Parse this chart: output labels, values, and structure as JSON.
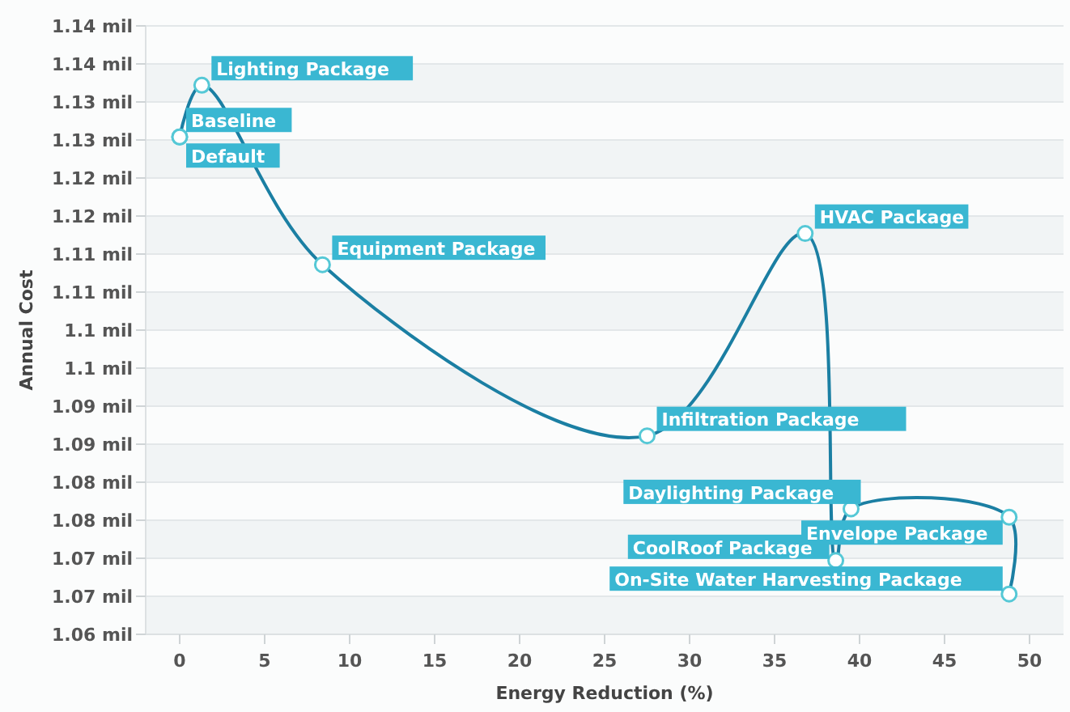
{
  "chart_data": {
    "type": "line",
    "xlabel": "Energy Reduction (%)",
    "ylabel": "Annual Cost",
    "x": [
      0,
      0,
      1.3,
      8.4,
      27.5,
      36.8,
      38.6,
      39.5,
      48.8,
      48.8
    ],
    "series": [
      {
        "color": "#1b7fa3",
        "values": [
          1.1254,
          1.1254,
          1.1322,
          1.1086,
          1.0861,
          1.1127,
          1.0697,
          1.0765,
          1.0754,
          1.0653
        ]
      }
    ],
    "xlim": [
      -2,
      52
    ],
    "xticks": [
      0,
      5,
      10,
      15,
      20,
      25,
      30,
      35,
      40,
      45,
      50
    ],
    "ylim": [
      1.06,
      1.14
    ],
    "yticks": [
      {
        "value": 1.06,
        "label": "1.06 mil"
      },
      {
        "value": 1.065,
        "label": "1.07 mil"
      },
      {
        "value": 1.07,
        "label": "1.07 mil"
      },
      {
        "value": 1.075,
        "label": "1.08 mil"
      },
      {
        "value": 1.08,
        "label": "1.08 mil"
      },
      {
        "value": 1.085,
        "label": "1.09 mil"
      },
      {
        "value": 1.09,
        "label": "1.09 mil"
      },
      {
        "value": 1.095,
        "label": "1.1 mil"
      },
      {
        "value": 1.1,
        "label": "1.1 mil"
      },
      {
        "value": 1.105,
        "label": "1.11 mil"
      },
      {
        "value": 1.11,
        "label": "1.11 mil"
      },
      {
        "value": 1.115,
        "label": "1.12 mil"
      },
      {
        "value": 1.12,
        "label": "1.12 mil"
      },
      {
        "value": 1.125,
        "label": "1.13 mil"
      },
      {
        "value": 1.13,
        "label": "1.13 mil"
      },
      {
        "value": 1.135,
        "label": "1.14 mil"
      },
      {
        "value": 1.14,
        "label": "1.14 mil"
      }
    ],
    "grid": "y",
    "marker": "circle",
    "line_style": "solid",
    "annotations": [
      {
        "text": "Default",
        "x": 0,
        "y": 1.1254
      },
      {
        "text": "Baseline",
        "x": 0,
        "y": 1.1254
      },
      {
        "text": "Lighting Package",
        "x": 1.3,
        "y": 1.1322
      },
      {
        "text": "Equipment Package",
        "x": 8.4,
        "y": 1.1086
      },
      {
        "text": "Infiltration Package",
        "x": 27.5,
        "y": 1.0861
      },
      {
        "text": "HVAC Package",
        "x": 36.8,
        "y": 1.1127
      },
      {
        "text": "CoolRoof Package",
        "x": 38.6,
        "y": 1.0697
      },
      {
        "text": "Daylighting Package",
        "x": 39.5,
        "y": 1.0765
      },
      {
        "text": "Envelope Package",
        "x": 48.8,
        "y": 1.0754
      },
      {
        "text": "On-Site Water Harvesting Package",
        "x": 48.8,
        "y": 1.0653
      }
    ]
  }
}
